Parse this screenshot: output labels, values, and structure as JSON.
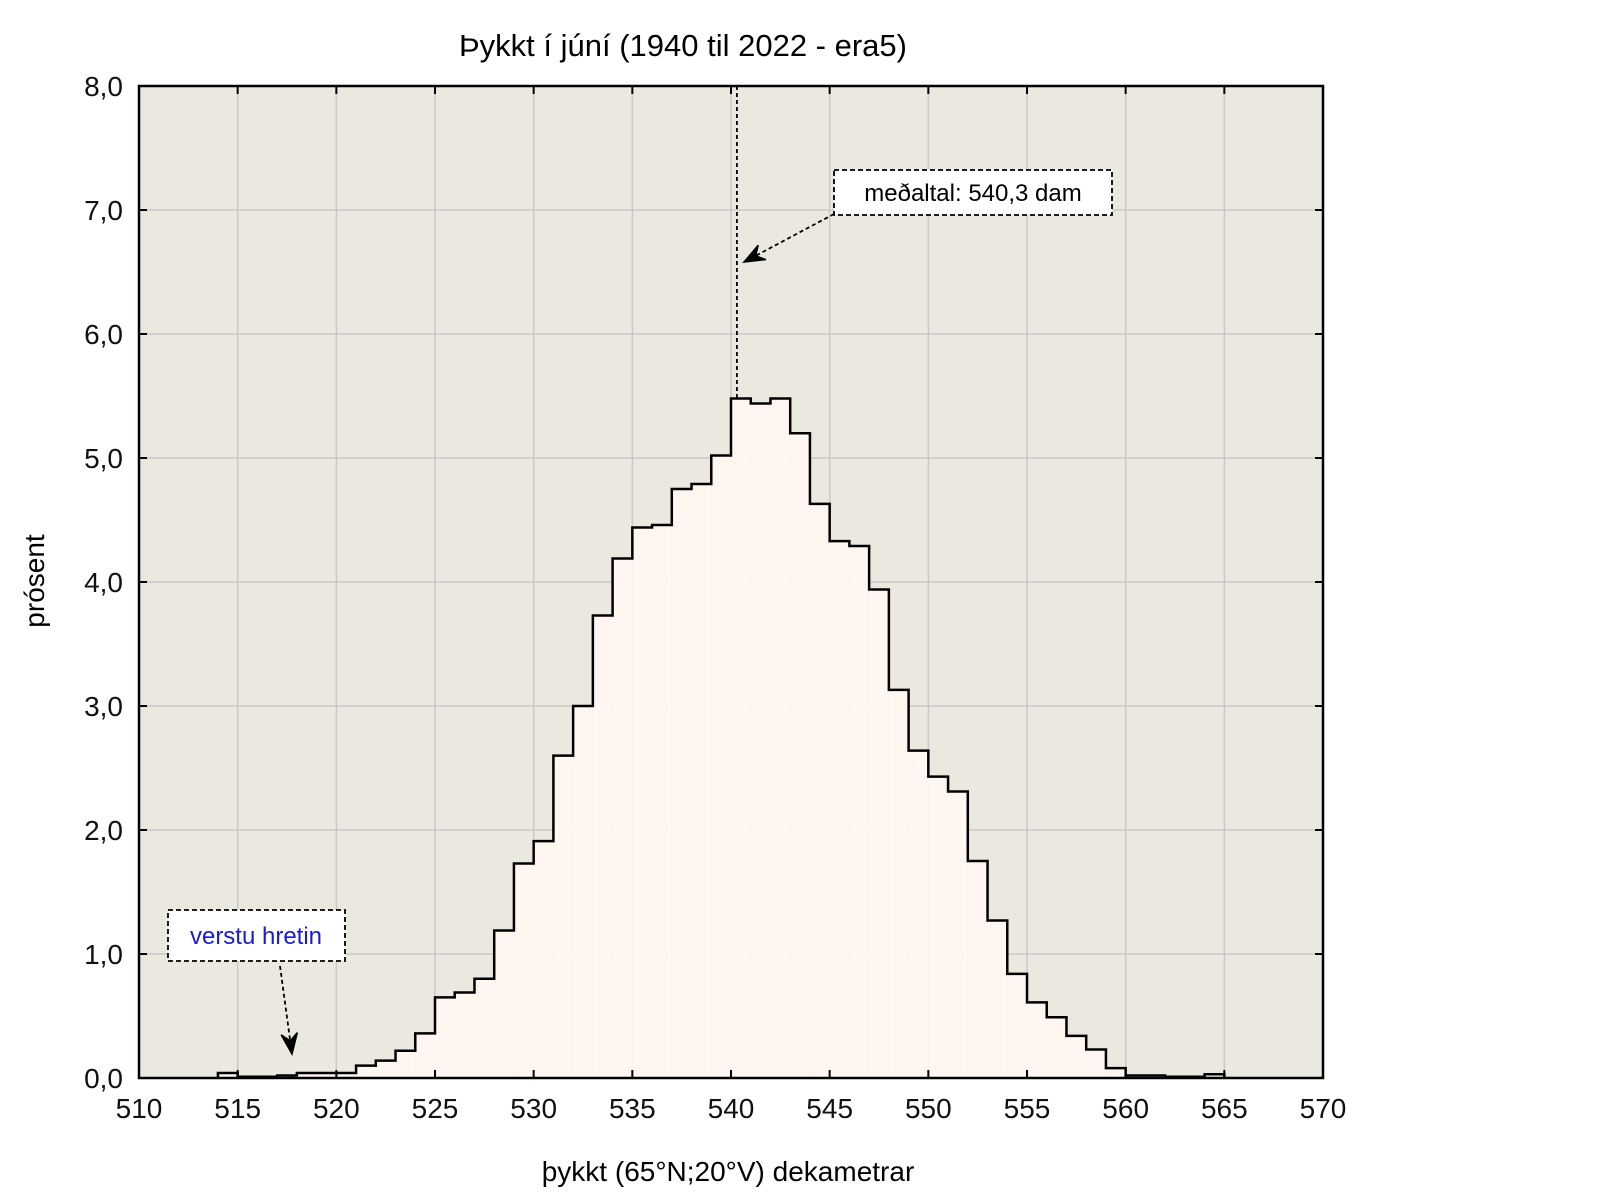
{
  "chart_data": {
    "type": "bar",
    "title": "Þykkt í júní (1940 til 2022 - era5)",
    "xlabel": "þykkt (65°N;20°V) dekametrar",
    "ylabel": "prósent",
    "xlim": [
      510,
      570
    ],
    "ylim": [
      0,
      8
    ],
    "x_ticks": [
      "510",
      "515",
      "520",
      "525",
      "530",
      "535",
      "540",
      "545",
      "550",
      "555",
      "560",
      "565",
      "570"
    ],
    "y_ticks": [
      "0,0",
      "1,0",
      "2,0",
      "3,0",
      "4,0",
      "5,0",
      "6,0",
      "7,0",
      "8,0"
    ],
    "grid": true,
    "bin_width": 1,
    "bins": [
      514,
      515,
      516,
      517,
      518,
      519,
      520,
      521,
      522,
      523,
      524,
      525,
      526,
      527,
      528,
      529,
      530,
      531,
      532,
      533,
      534,
      535,
      536,
      537,
      538,
      539,
      540,
      541,
      542,
      543,
      544,
      545,
      546,
      547,
      548,
      549,
      550,
      551,
      552,
      553,
      554,
      555,
      556,
      557,
      558,
      559,
      560,
      561,
      562,
      563,
      564
    ],
    "values": [
      0.04,
      0.01,
      0.01,
      0.02,
      0.04,
      0.04,
      0.04,
      0.1,
      0.14,
      0.22,
      0.36,
      0.65,
      0.69,
      0.8,
      1.19,
      1.73,
      1.91,
      2.6,
      3.0,
      3.73,
      4.19,
      4.44,
      4.46,
      4.75,
      4.79,
      5.02,
      5.48,
      5.44,
      5.48,
      5.2,
      4.63,
      4.33,
      4.29,
      3.94,
      3.13,
      2.64,
      2.43,
      2.31,
      1.75,
      1.27,
      0.84,
      0.61,
      0.49,
      0.34,
      0.23,
      0.08,
      0.02,
      0.02,
      0.01,
      0.01,
      0.03
    ],
    "mean_line_x": 540.3,
    "annotations": [
      {
        "text": "meðaltal: 540,3 dam",
        "color": "#000000"
      },
      {
        "text": "verstu hretin",
        "color": "#1a1ad6"
      }
    ],
    "colors": {
      "plot_bg": "#ebe8df",
      "fill": "#fff6f1",
      "grid": "#c9c9c9",
      "outline": "#000000"
    }
  }
}
